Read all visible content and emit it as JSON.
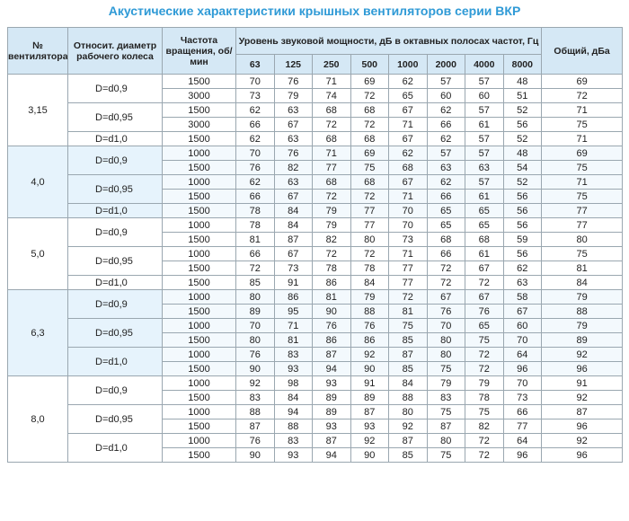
{
  "title": "Акустические характеристики крышных вентиляторов серии ВКР",
  "table": {
    "headers": {
      "fan": "№ вентилятора",
      "diameter": "Относит. диаметр рабочего колеса",
      "speed": "Частота вращения, об/мин",
      "levels": "Уровень звуковой мощности, дБ в октавных полосах частот, Гц",
      "total": "Общий, дБа",
      "bands": [
        63,
        125,
        250,
        500,
        1000,
        2000,
        4000,
        8000
      ]
    },
    "groups": [
      {
        "fan": "3,15",
        "variants": [
          {
            "diameter": "D=d0,9",
            "rows": [
              {
                "speed": 1500,
                "levels": [
                  70,
                  76,
                  71,
                  69,
                  62,
                  57,
                  57,
                  48
                ],
                "total": 69
              },
              {
                "speed": 3000,
                "levels": [
                  73,
                  79,
                  74,
                  72,
                  65,
                  60,
                  60,
                  51
                ],
                "total": 72
              }
            ]
          },
          {
            "diameter": "D=d0,95",
            "rows": [
              {
                "speed": 1500,
                "levels": [
                  62,
                  63,
                  68,
                  68,
                  67,
                  62,
                  57,
                  52
                ],
                "total": 71
              },
              {
                "speed": 3000,
                "levels": [
                  66,
                  67,
                  72,
                  72,
                  71,
                  66,
                  61,
                  56
                ],
                "total": 75
              }
            ]
          },
          {
            "diameter": "D=d1,0",
            "rows": [
              {
                "speed": 1500,
                "levels": [
                  62,
                  63,
                  68,
                  68,
                  67,
                  62,
                  57,
                  52
                ],
                "total": 71
              }
            ]
          }
        ]
      },
      {
        "fan": "4,0",
        "variants": [
          {
            "diameter": "D=d0,9",
            "rows": [
              {
                "speed": 1000,
                "levels": [
                  70,
                  76,
                  71,
                  69,
                  62,
                  57,
                  57,
                  48
                ],
                "total": 69
              },
              {
                "speed": 1500,
                "levels": [
                  76,
                  82,
                  77,
                  75,
                  68,
                  63,
                  63,
                  54
                ],
                "total": 75
              }
            ]
          },
          {
            "diameter": "D=d0,95",
            "rows": [
              {
                "speed": 1000,
                "levels": [
                  62,
                  63,
                  68,
                  68,
                  67,
                  62,
                  57,
                  52
                ],
                "total": 71
              },
              {
                "speed": 1500,
                "levels": [
                  66,
                  67,
                  72,
                  72,
                  71,
                  66,
                  61,
                  56
                ],
                "total": 75
              }
            ]
          },
          {
            "diameter": "D=d1,0",
            "rows": [
              {
                "speed": 1500,
                "levels": [
                  78,
                  84,
                  79,
                  77,
                  70,
                  65,
                  65,
                  56
                ],
                "total": 77
              }
            ]
          }
        ]
      },
      {
        "fan": "5,0",
        "variants": [
          {
            "diameter": "D=d0,9",
            "rows": [
              {
                "speed": 1000,
                "levels": [
                  78,
                  84,
                  79,
                  77,
                  70,
                  65,
                  65,
                  56
                ],
                "total": 77
              },
              {
                "speed": 1500,
                "levels": [
                  81,
                  87,
                  82,
                  80,
                  73,
                  68,
                  68,
                  59
                ],
                "total": 80
              }
            ]
          },
          {
            "diameter": "D=d0,95",
            "rows": [
              {
                "speed": 1000,
                "levels": [
                  66,
                  67,
                  72,
                  72,
                  71,
                  66,
                  61,
                  56
                ],
                "total": 75
              },
              {
                "speed": 1500,
                "levels": [
                  72,
                  73,
                  78,
                  78,
                  77,
                  72,
                  67,
                  62
                ],
                "total": 81
              }
            ]
          },
          {
            "diameter": "D=d1,0",
            "rows": [
              {
                "speed": 1500,
                "levels": [
                  85,
                  91,
                  86,
                  84,
                  77,
                  72,
                  72,
                  63
                ],
                "total": 84
              }
            ]
          }
        ]
      },
      {
        "fan": "6,3",
        "variants": [
          {
            "diameter": "D=d0,9",
            "rows": [
              {
                "speed": 1000,
                "levels": [
                  80,
                  86,
                  81,
                  79,
                  72,
                  67,
                  67,
                  58
                ],
                "total": 79
              },
              {
                "speed": 1500,
                "levels": [
                  89,
                  95,
                  90,
                  88,
                  81,
                  76,
                  76,
                  67
                ],
                "total": 88
              }
            ]
          },
          {
            "diameter": "D=d0,95",
            "rows": [
              {
                "speed": 1000,
                "levels": [
                  70,
                  71,
                  76,
                  76,
                  75,
                  70,
                  65,
                  60
                ],
                "total": 79
              },
              {
                "speed": 1500,
                "levels": [
                  80,
                  81,
                  86,
                  86,
                  85,
                  80,
                  75,
                  70
                ],
                "total": 89
              }
            ]
          },
          {
            "diameter": "D=d1,0",
            "rows": [
              {
                "speed": 1000,
                "levels": [
                  76,
                  83,
                  87,
                  92,
                  87,
                  80,
                  72,
                  64
                ],
                "total": 92
              },
              {
                "speed": 1500,
                "levels": [
                  90,
                  93,
                  94,
                  90,
                  85,
                  75,
                  72,
                  96
                ],
                "total": 96
              }
            ]
          }
        ]
      },
      {
        "fan": "8,0",
        "variants": [
          {
            "diameter": "D=d0,9",
            "rows": [
              {
                "speed": 1000,
                "levels": [
                  92,
                  98,
                  93,
                  91,
                  84,
                  79,
                  79,
                  70
                ],
                "total": 91
              },
              {
                "speed": 1500,
                "levels": [
                  83,
                  84,
                  89,
                  89,
                  88,
                  83,
                  78,
                  73
                ],
                "total": 92
              }
            ]
          },
          {
            "diameter": "D=d0,95",
            "rows": [
              {
                "speed": 1000,
                "levels": [
                  88,
                  94,
                  89,
                  87,
                  80,
                  75,
                  75,
                  66
                ],
                "total": 87
              },
              {
                "speed": 1500,
                "levels": [
                  87,
                  88,
                  93,
                  93,
                  92,
                  87,
                  82,
                  77
                ],
                "total": 96
              }
            ]
          },
          {
            "diameter": "D=d1,0",
            "rows": [
              {
                "speed": 1000,
                "levels": [
                  76,
                  83,
                  87,
                  92,
                  87,
                  80,
                  72,
                  64
                ],
                "total": 92
              },
              {
                "speed": 1500,
                "levels": [
                  90,
                  93,
                  94,
                  90,
                  85,
                  75,
                  72,
                  96
                ],
                "total": 96
              }
            ]
          }
        ]
      }
    ]
  }
}
